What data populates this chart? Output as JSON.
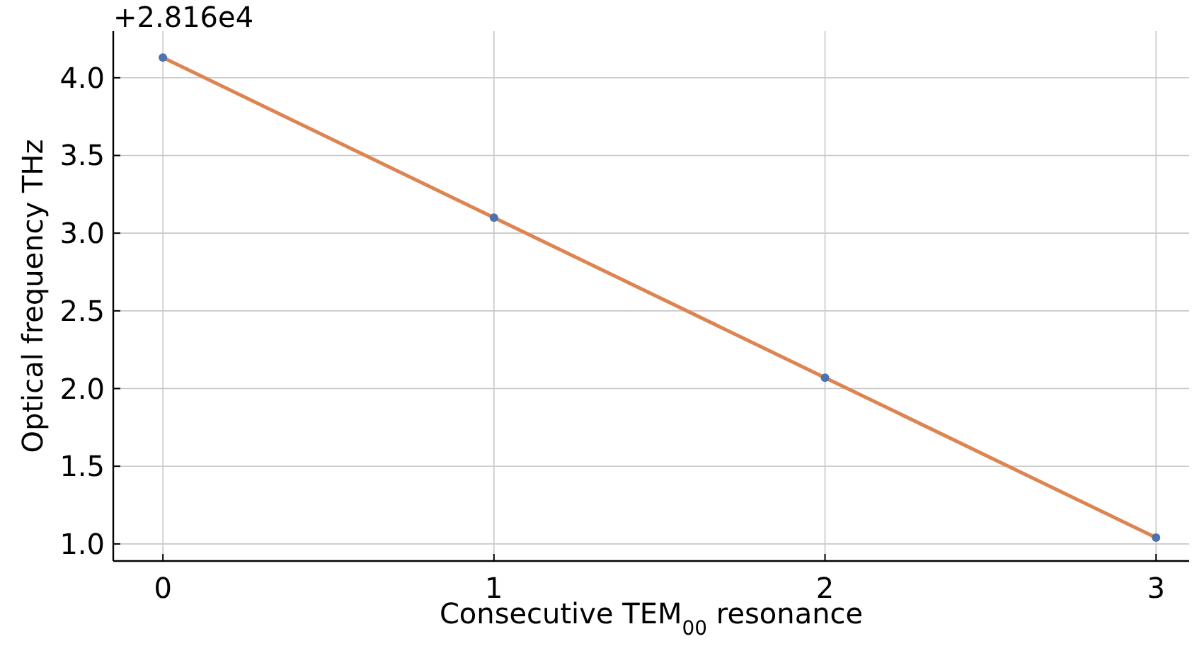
{
  "chart_data": {
    "type": "line",
    "xlabel": "Consecutive TEM$_{00}$ resonance",
    "ylabel": "Optical frequency THz",
    "annotations": [
      "+2.816e4"
    ],
    "x": [
      0,
      1,
      2,
      3
    ],
    "series": [
      {
        "type": "line",
        "color": "#dd8452",
        "values": [
          4.13,
          3.1,
          2.07,
          1.04
        ]
      },
      {
        "type": "scatter",
        "color": "#4c72b0",
        "values": [
          4.13,
          3.1,
          2.07,
          1.04
        ]
      }
    ],
    "xlim": [
      -0.15,
      3.1
    ],
    "xticks": [
      0,
      1,
      2,
      3
    ],
    "ylim": [
      0.89,
      4.3
    ],
    "yticks": [
      {
        "value": 1,
        "label": "1.0"
      },
      {
        "value": 1.5,
        "label": "1.5"
      },
      {
        "value": 2,
        "label": "2.0"
      },
      {
        "value": 2.5,
        "label": "2.5"
      },
      {
        "value": 3,
        "label": "3.0"
      },
      {
        "value": 3.5,
        "label": "3.5"
      },
      {
        "value": 4,
        "label": "4.0"
      }
    ],
    "grid": true
  }
}
